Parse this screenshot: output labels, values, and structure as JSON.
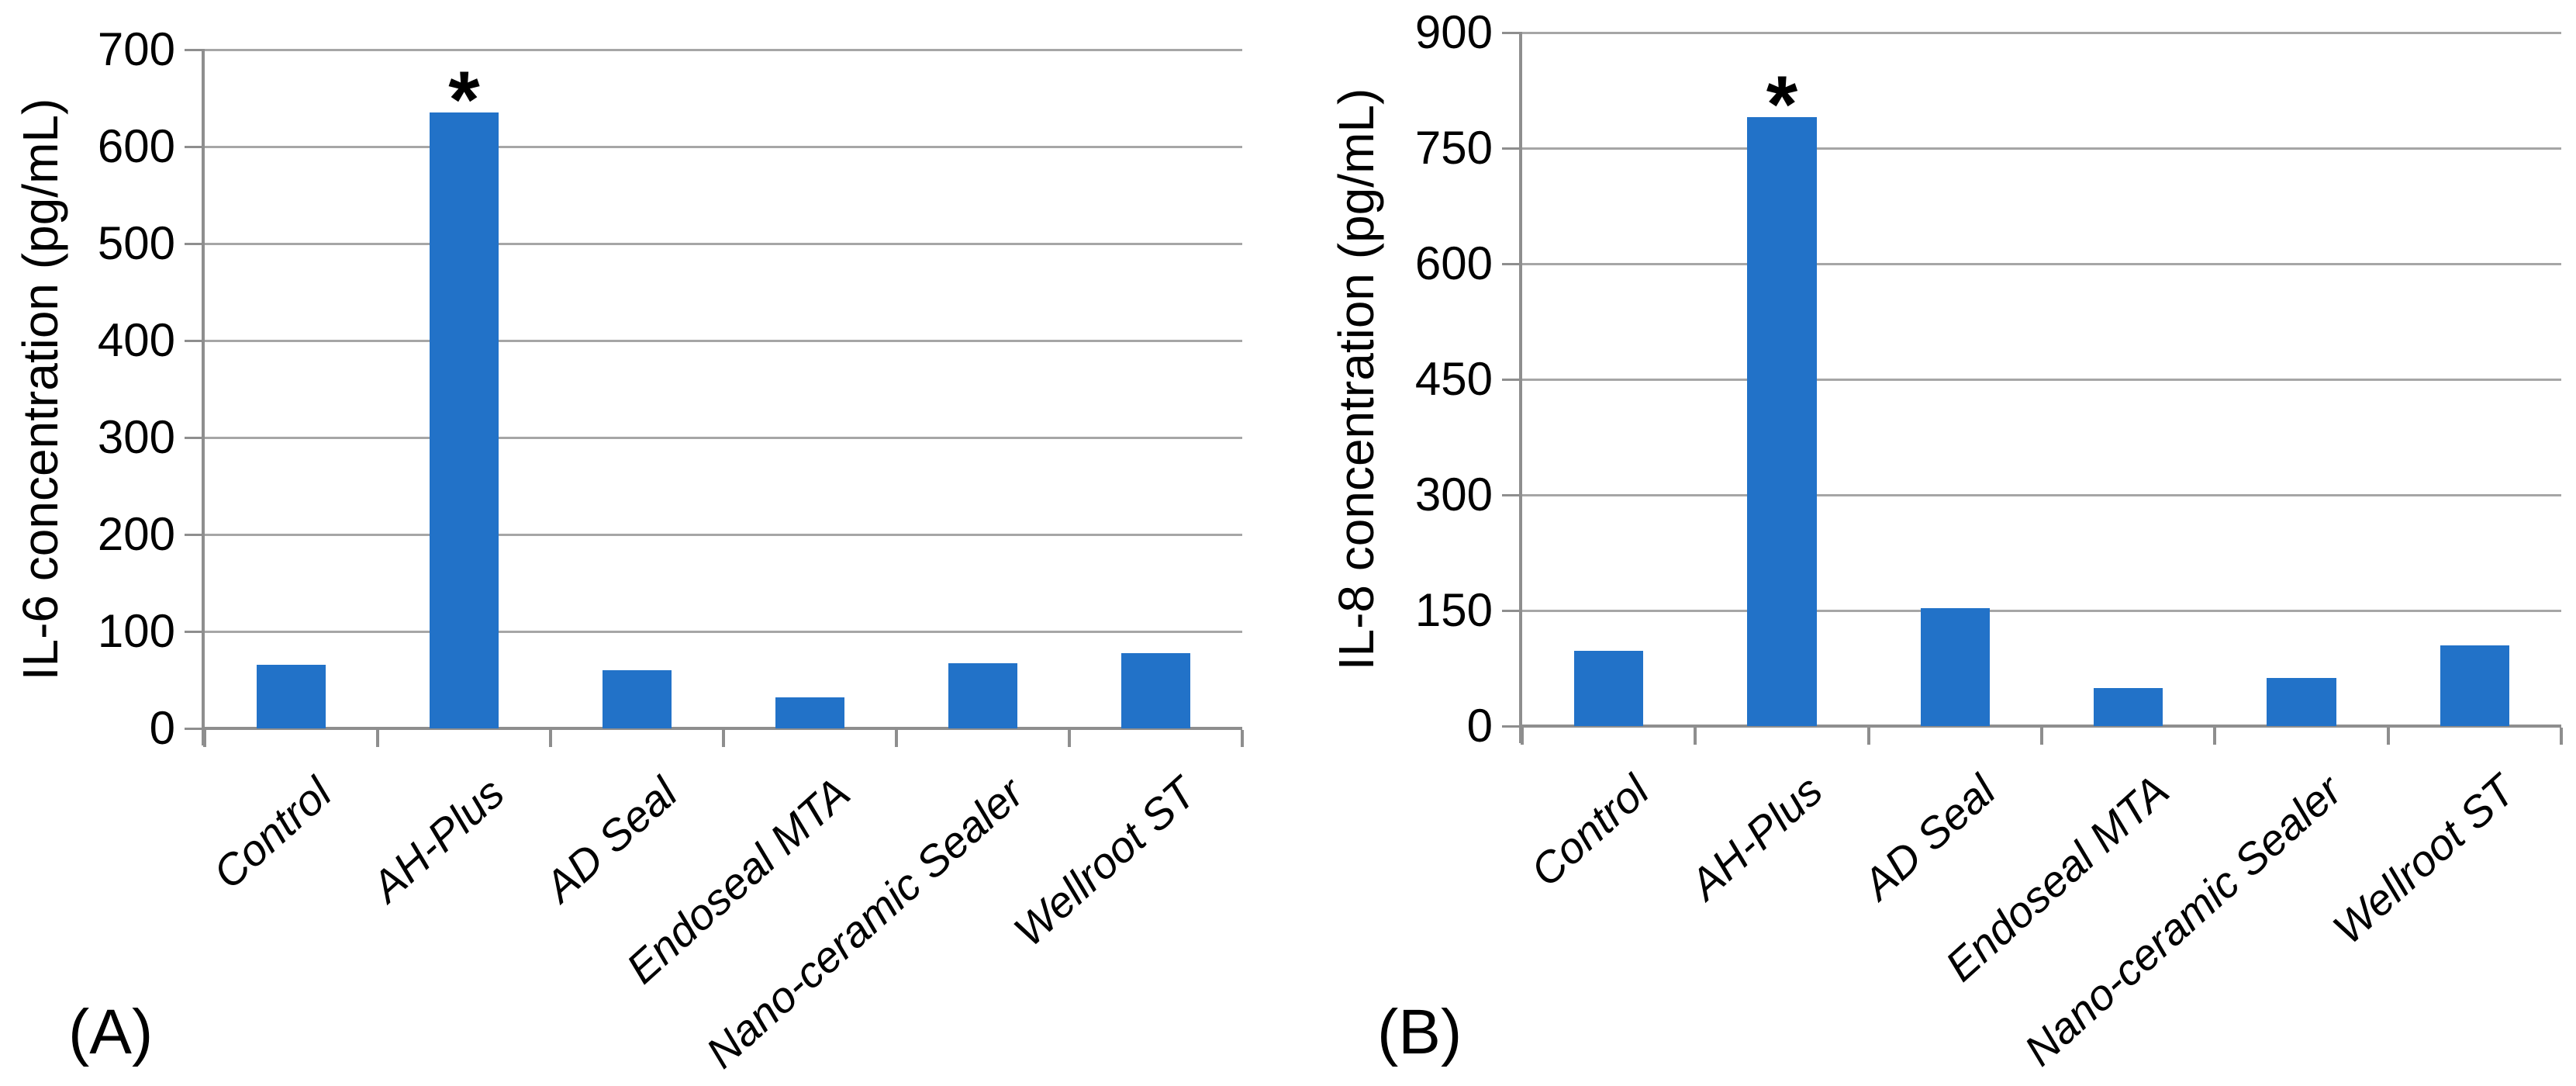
{
  "figure": {
    "background_color": "#ffffff",
    "text_color": "#000000",
    "panel_letters": [
      "(A)",
      "(B)"
    ]
  },
  "chart_data": [
    {
      "type": "bar",
      "panel_label": "(A)",
      "title": "",
      "xlabel": "",
      "ylabel": "IL-6 concentration (pg/mL)",
      "categories": [
        "Control",
        "AH-Plus",
        "AD Seal",
        "Endoseal MTA",
        "Nano-ceramic Sealer",
        "Wellroot ST"
      ],
      "values": [
        66,
        635,
        60,
        32,
        67,
        78
      ],
      "ylim": [
        0,
        700
      ],
      "yticks": [
        0,
        100,
        200,
        300,
        400,
        500,
        600,
        700
      ],
      "grid": "horizontal",
      "legend": "none",
      "bar_color": "#2272c8",
      "gridline_color": "#a6a6a6",
      "axis_color": "#8e8e8e",
      "annotation": {
        "text": "*",
        "category": "AH-Plus"
      }
    },
    {
      "type": "bar",
      "panel_label": "(B)",
      "title": "",
      "xlabel": "",
      "ylabel": "IL-8 concentration (pg/mL)",
      "categories": [
        "Control",
        "AH-Plus",
        "AD Seal",
        "Endoseal MTA",
        "Nano-ceramic Sealer",
        "Wellroot ST"
      ],
      "values": [
        98,
        790,
        153,
        49,
        62,
        105
      ],
      "ylim": [
        0,
        900
      ],
      "yticks": [
        0,
        150,
        300,
        450,
        600,
        750,
        900
      ],
      "grid": "horizontal",
      "legend": "none",
      "bar_color": "#2272c8",
      "gridline_color": "#a6a6a6",
      "axis_color": "#8e8e8e",
      "annotation": {
        "text": "*",
        "category": "AH-Plus"
      }
    }
  ]
}
